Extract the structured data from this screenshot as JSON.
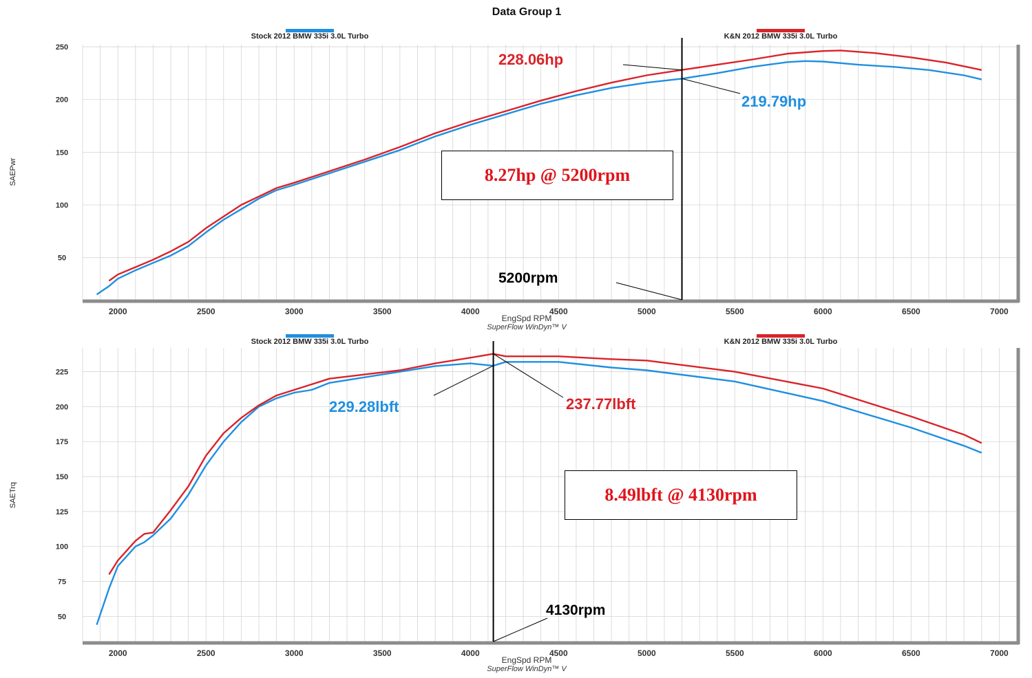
{
  "header": {
    "title": "Data Group 1"
  },
  "colors": {
    "stock": "#1f8fe0",
    "kn": "#d9232a",
    "marker": "#000000",
    "tick_text": "#333333",
    "grid": "#d4d4d4",
    "axis_frame": "#8c8c8c"
  },
  "chart_data": [
    {
      "type": "line",
      "name": "horsepower",
      "footer": "SuperFlow WinDyn™ V",
      "xlabel": "EngSpd RPM",
      "ylabel": "SAEPwr",
      "xlim": [
        1800,
        7100
      ],
      "ylim": [
        10,
        252
      ],
      "x_ticks": [
        2000,
        2500,
        3000,
        3500,
        4000,
        4500,
        5000,
        5500,
        6000,
        6500,
        7000
      ],
      "x_tick_labels": [
        "2000",
        "2500",
        "3000",
        "3500",
        "4000",
        "4500",
        "5000",
        "5500",
        "6000",
        "6500",
        "7000"
      ],
      "y_ticks": [
        50,
        100,
        150,
        200,
        250
      ],
      "y_tick_labels": [
        "50",
        "100",
        "150",
        "200",
        "250"
      ],
      "legend": [
        {
          "label": "Stock 2012 BMW 335i 3.0L Turbo",
          "color": "#1f8fe0"
        },
        {
          "label": "K&N 2012 BMW 335i 3.0L Turbo",
          "color": "#d9232a"
        }
      ],
      "series": [
        {
          "name": "Stock 2012 BMW 335i 3.0L Turbo",
          "color": "#1f8fe0",
          "x": [
            1880,
            1950,
            2000,
            2100,
            2200,
            2300,
            2400,
            2500,
            2600,
            2700,
            2800,
            2900,
            3000,
            3200,
            3400,
            3600,
            3800,
            4000,
            4200,
            4400,
            4600,
            4800,
            5000,
            5200,
            5400,
            5600,
            5800,
            5900,
            6000,
            6200,
            6400,
            6600,
            6800,
            6900
          ],
          "y": [
            15,
            23,
            30,
            38,
            45,
            52,
            61,
            74,
            86,
            96,
            106,
            114,
            119,
            130,
            141,
            152,
            165,
            176,
            186,
            196,
            204,
            211,
            216,
            219.79,
            225,
            231,
            235.5,
            236.5,
            236,
            233,
            231,
            228,
            223,
            219
          ]
        },
        {
          "name": "K&N 2012 BMW 335i 3.0L Turbo",
          "color": "#d9232a",
          "x": [
            1950,
            2000,
            2100,
            2200,
            2300,
            2400,
            2500,
            2600,
            2700,
            2800,
            2900,
            3000,
            3200,
            3400,
            3600,
            3800,
            4000,
            4200,
            4400,
            4600,
            4800,
            5000,
            5200,
            5400,
            5600,
            5800,
            6000,
            6100,
            6300,
            6500,
            6700,
            6900
          ],
          "y": [
            28,
            34,
            41,
            48,
            56,
            65,
            78,
            89,
            100,
            108,
            116,
            121,
            132,
            143,
            155,
            168,
            179,
            189,
            199,
            208,
            216,
            223,
            228.06,
            233,
            238,
            243.5,
            246,
            246.5,
            244,
            240,
            235,
            228
          ]
        }
      ],
      "annotations": {
        "kn_value": "228.06hp",
        "stock_value": "219.79hp",
        "rpm_label": "5200rpm",
        "marker_rpm": 5200,
        "gain_box": "8.27hp @ 5200rpm"
      }
    },
    {
      "type": "line",
      "name": "torque",
      "footer": "SuperFlow WinDyn™ V",
      "xlabel": "EngSpd RPM",
      "ylabel": "SAETrq",
      "xlim": [
        1800,
        7100
      ],
      "ylim": [
        32,
        242
      ],
      "x_ticks": [
        2000,
        2500,
        3000,
        3500,
        4000,
        4500,
        5000,
        5500,
        6000,
        6500,
        7000
      ],
      "x_tick_labels": [
        "2000",
        "2500",
        "3000",
        "3500",
        "4000",
        "4500",
        "5000",
        "5500",
        "6000",
        "6500",
        "7000"
      ],
      "y_ticks": [
        50,
        75,
        100,
        125,
        150,
        175,
        200,
        225
      ],
      "y_tick_labels": [
        "50",
        "75",
        "100",
        "125",
        "150",
        "175",
        "200",
        "225"
      ],
      "legend": [
        {
          "label": "Stock 2012 BMW 335i 3.0L Turbo",
          "color": "#1f8fe0"
        },
        {
          "label": "K&N 2012 BMW 335i 3.0L Turbo",
          "color": "#d9232a"
        }
      ],
      "series": [
        {
          "name": "Stock 2012 BMW 335i 3.0L Turbo",
          "color": "#1f8fe0",
          "x": [
            1880,
            1950,
            2000,
            2100,
            2150,
            2200,
            2300,
            2400,
            2500,
            2600,
            2700,
            2800,
            2900,
            3000,
            3100,
            3200,
            3400,
            3600,
            3800,
            4000,
            4130,
            4200,
            4500,
            4800,
            5000,
            5500,
            6000,
            6500,
            6800,
            6900
          ],
          "y": [
            44,
            70,
            86,
            100,
            103,
            108,
            120,
            137,
            158,
            175,
            189,
            200,
            206,
            210,
            212,
            217,
            221,
            225,
            229,
            231,
            229.28,
            232,
            232,
            228,
            226,
            218,
            204,
            185,
            172,
            167
          ]
        },
        {
          "name": "K&N 2012 BMW 335i 3.0L Turbo",
          "color": "#d9232a",
          "x": [
            1950,
            2000,
            2100,
            2150,
            2200,
            2300,
            2400,
            2500,
            2600,
            2700,
            2800,
            2900,
            3000,
            3100,
            3200,
            3400,
            3600,
            3800,
            4000,
            4130,
            4200,
            4500,
            4800,
            5000,
            5500,
            6000,
            6500,
            6800,
            6900
          ],
          "y": [
            80,
            90,
            104,
            109,
            110,
            126,
            143,
            165,
            181,
            192,
            201,
            208,
            212,
            216,
            220,
            223,
            226,
            231,
            235,
            237.77,
            236,
            236,
            234,
            233,
            225,
            213,
            193,
            180,
            174
          ]
        }
      ],
      "annotations": {
        "stock_value": "229.28lbft",
        "kn_value": "237.77lbft",
        "rpm_label": "4130rpm",
        "marker_rpm": 4130,
        "gain_box": "8.49lbft @ 4130rpm"
      }
    }
  ]
}
